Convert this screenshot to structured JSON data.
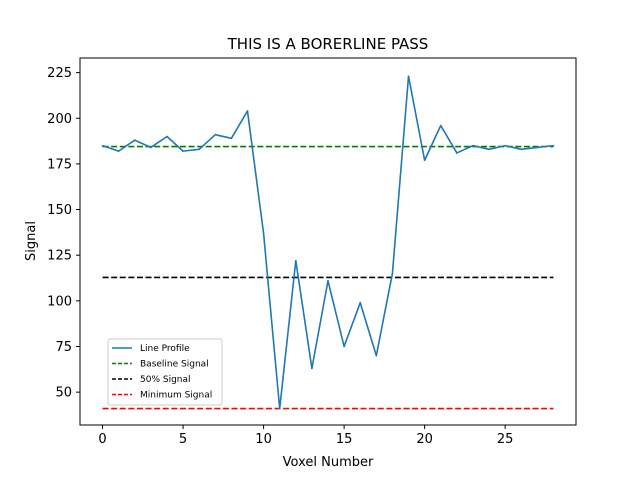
{
  "chart_data": {
    "type": "line",
    "title": "THIS IS A BORERLINE PASS",
    "xlabel": "Voxel Number",
    "ylabel": "Signal",
    "xlim": [
      -1.4,
      29.4
    ],
    "ylim": [
      32,
      233
    ],
    "xticks": [
      0,
      5,
      10,
      15,
      20,
      25
    ],
    "yticks": [
      50,
      75,
      100,
      125,
      150,
      175,
      200,
      225
    ],
    "grid": false,
    "legend_position": "lower-left",
    "profile": {
      "name": "Line Profile",
      "color": "#1f77b4",
      "style": "solid",
      "x": [
        0,
        1,
        2,
        3,
        4,
        5,
        6,
        7,
        8,
        9,
        10,
        11,
        12,
        13,
        14,
        15,
        16,
        17,
        18,
        19,
        20,
        21,
        22,
        23,
        24,
        25,
        26,
        27,
        28
      ],
      "y": [
        185,
        182,
        188,
        184,
        190,
        182,
        183,
        191,
        189,
        204,
        137,
        41,
        122,
        63,
        111,
        75,
        99,
        70,
        115,
        223,
        177,
        196,
        181,
        185,
        183,
        185,
        183,
        184,
        185
      ]
    },
    "reference_lines": [
      {
        "name": "Baseline Signal",
        "color": "#008000",
        "style": "dashed",
        "value": 184.5,
        "x": [
          0,
          28
        ]
      },
      {
        "name": "50% Signal",
        "color": "#000000",
        "style": "dashed",
        "value": 112.8,
        "x": [
          0,
          28
        ]
      },
      {
        "name": "Minimum Signal",
        "color": "#ff0000",
        "style": "dashed",
        "value": 41,
        "x": [
          0,
          28
        ]
      }
    ]
  }
}
